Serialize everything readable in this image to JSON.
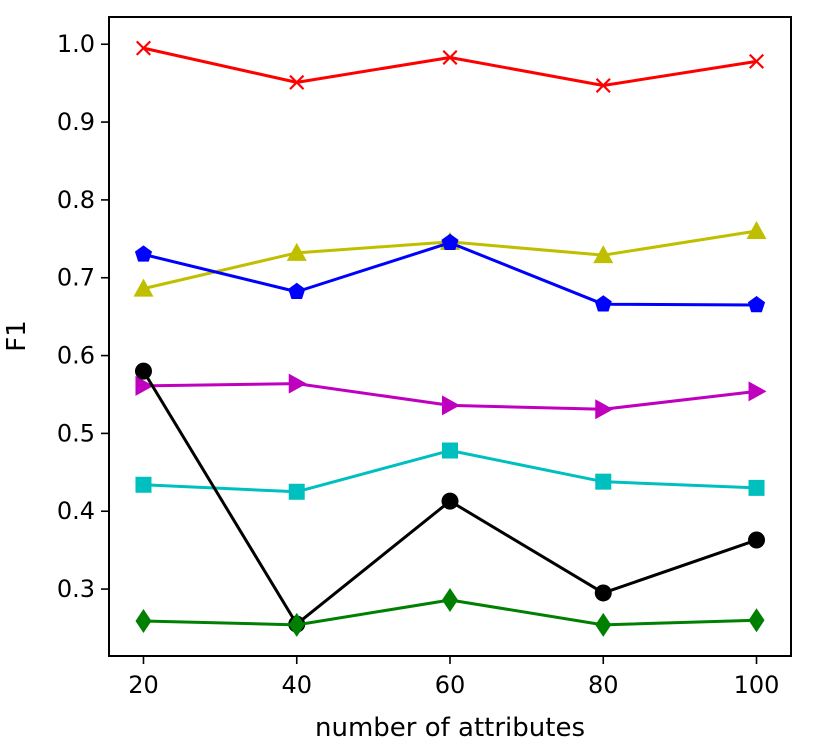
{
  "chart_data": {
    "type": "line",
    "title": "",
    "xlabel": "number of attributes",
    "ylabel": "F1",
    "x": [
      20,
      40,
      60,
      80,
      100
    ],
    "xlim": [
      15.5,
      104.5
    ],
    "ylim": [
      0.214,
      1.035
    ],
    "xticks": [
      20,
      40,
      60,
      80,
      100
    ],
    "xtick_labels": [
      "20",
      "40",
      "60",
      "80",
      "100"
    ],
    "yticks": [
      0.3,
      0.4,
      0.5,
      0.6,
      0.7,
      0.8,
      0.9,
      1.0
    ],
    "ytick_labels": [
      "0.3",
      "0.4",
      "0.5",
      "0.6",
      "0.7",
      "0.8",
      "0.9",
      "1.0"
    ],
    "grid": false,
    "legend": "none",
    "series": [
      {
        "name": "red-x",
        "color": "#ff0000",
        "marker": "x",
        "values": [
          0.995,
          0.951,
          0.983,
          0.947,
          0.978
        ]
      },
      {
        "name": "yellow-triangle-up",
        "color": "#bfbf00",
        "marker": "triangle-up",
        "values": [
          0.686,
          0.732,
          0.746,
          0.729,
          0.76
        ]
      },
      {
        "name": "blue-pentagon",
        "color": "#0000ff",
        "marker": "pentagon",
        "values": [
          0.73,
          0.682,
          0.745,
          0.666,
          0.665
        ]
      },
      {
        "name": "magenta-triangle-right",
        "color": "#bf00bf",
        "marker": "triangle-right",
        "values": [
          0.561,
          0.564,
          0.536,
          0.531,
          0.554
        ]
      },
      {
        "name": "cyan-square",
        "color": "#00bfbf",
        "marker": "square",
        "values": [
          0.434,
          0.425,
          0.478,
          0.438,
          0.43
        ]
      },
      {
        "name": "black-circle",
        "color": "#000000",
        "marker": "circle",
        "values": [
          0.58,
          0.255,
          0.413,
          0.295,
          0.363
        ]
      },
      {
        "name": "green-diamond",
        "color": "#008000",
        "marker": "diamond",
        "values": [
          0.259,
          0.254,
          0.286,
          0.254,
          0.26
        ]
      }
    ]
  }
}
